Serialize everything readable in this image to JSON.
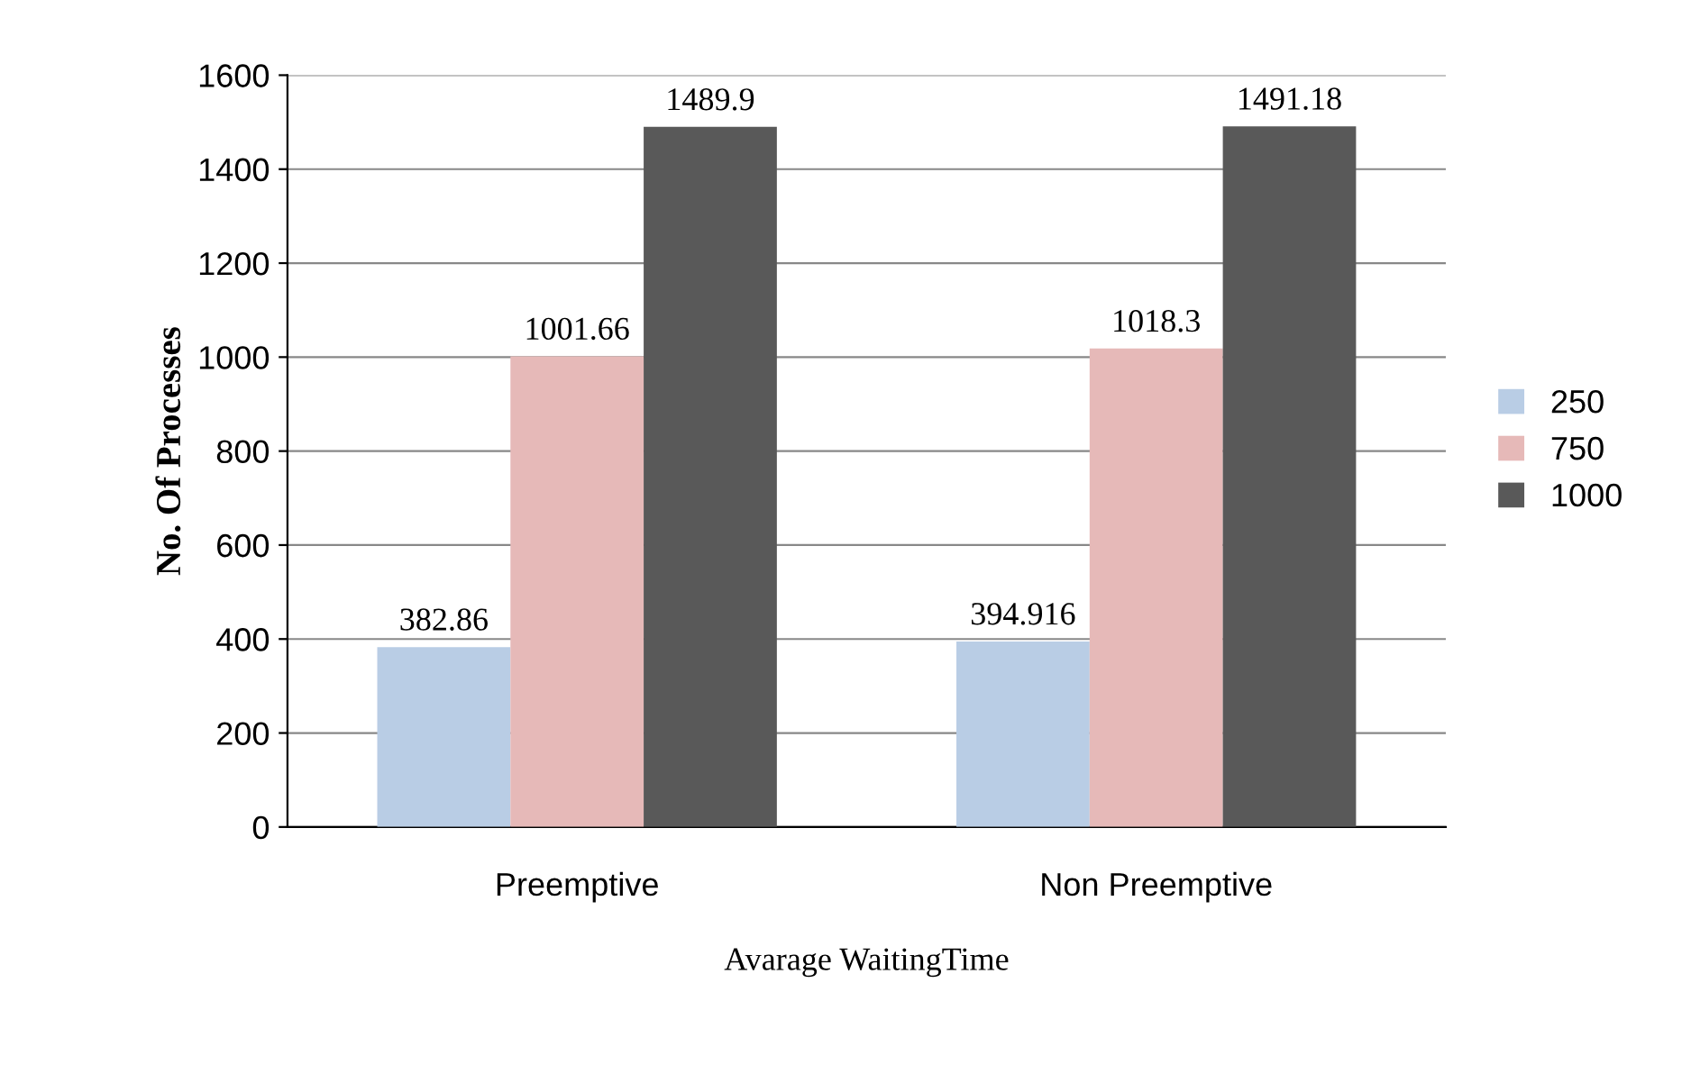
{
  "chart_data": {
    "type": "bar",
    "xlabel": "Avarage WaitingTime",
    "ylabel": "No. Of Processes",
    "categories": [
      "Preemptive",
      "Non Preemptive"
    ],
    "series": [
      {
        "name": "250",
        "color": "#b9cde5",
        "values": [
          382.86,
          394.916
        ]
      },
      {
        "name": "750",
        "color": "#e6b9b8",
        "values": [
          1001.66,
          1018.3
        ]
      },
      {
        "name": "1000",
        "color": "#595959",
        "values": [
          1489.9,
          1491.18
        ]
      }
    ],
    "ylim": [
      0,
      1600
    ],
    "yticks": [
      0,
      200,
      400,
      600,
      800,
      1000,
      1200,
      1400,
      1600
    ],
    "grid": "y",
    "legend": "right",
    "data_labels": true
  }
}
